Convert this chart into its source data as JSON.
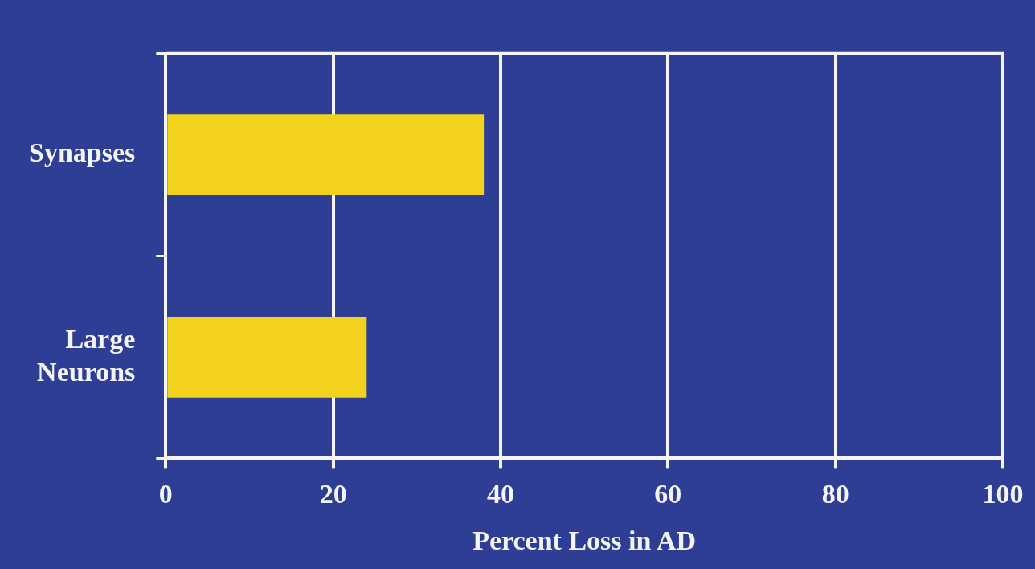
{
  "chart_data": {
    "type": "bar",
    "orientation": "horizontal",
    "categories": [
      "Synapses",
      "Large Neurons"
    ],
    "values": [
      38,
      24
    ],
    "color": "#f2d21c",
    "xlim": [
      0,
      100
    ],
    "xticks": [
      0,
      20,
      40,
      60,
      80,
      100
    ],
    "xlabel": "Percent Loss in AD",
    "grid": "x",
    "legend": false
  }
}
